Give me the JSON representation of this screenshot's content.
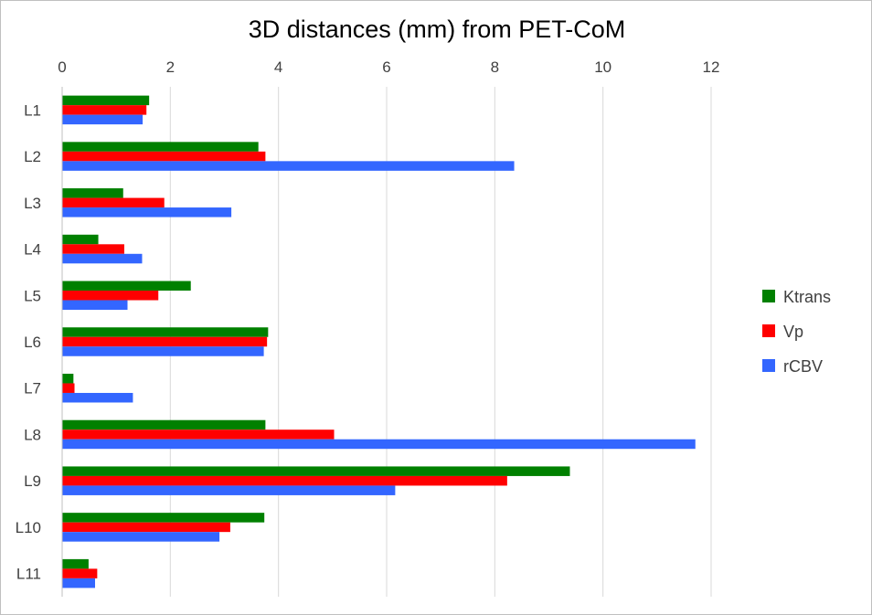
{
  "chart_data": {
    "type": "bar",
    "orientation": "horizontal",
    "title": "3D distances (mm) from PET-CoM",
    "xlabel": "",
    "ylabel": "",
    "xlim": [
      0,
      12
    ],
    "x_ticks": [
      "0",
      "2",
      "4",
      "6",
      "8",
      "10",
      "12"
    ],
    "x_tick_values": [
      0,
      2,
      4,
      6,
      8,
      10,
      12
    ],
    "x_axis_position": "top",
    "grid": true,
    "legend_position": "right",
    "categories": [
      "L1",
      "L2",
      "L3",
      "L4",
      "L5",
      "L6",
      "L7",
      "L8",
      "L9",
      "L10",
      "L11"
    ],
    "series": [
      {
        "name": "Ktrans",
        "color": "#008000",
        "values": [
          1.6,
          3.62,
          1.12,
          0.66,
          2.37,
          3.8,
          0.2,
          3.75,
          9.38,
          3.73,
          0.48
        ]
      },
      {
        "name": "Vp",
        "color": "#ff0000",
        "values": [
          1.55,
          3.75,
          1.88,
          1.14,
          1.77,
          3.78,
          0.22,
          5.02,
          8.22,
          3.1,
          0.64
        ]
      },
      {
        "name": "rCBV",
        "color": "#3366ff",
        "values": [
          1.48,
          8.35,
          3.12,
          1.47,
          1.2,
          3.72,
          1.3,
          11.7,
          6.15,
          2.9,
          0.6
        ]
      }
    ]
  }
}
